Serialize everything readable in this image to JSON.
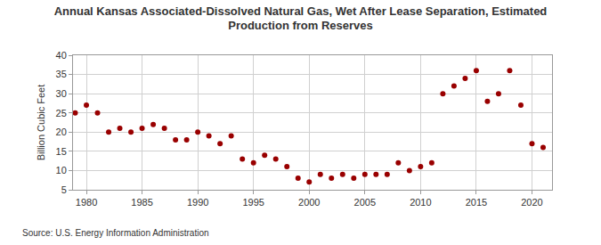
{
  "chart_data": {
    "type": "scatter",
    "title": "Annual Kansas Associated-Dissolved Natural Gas, Wet After Lease Separation, Estimated\nProduction from Reserves",
    "y_label": "Billion Cubic Feet",
    "annotations": [
      "Source: U.S. Energy Information Administration"
    ],
    "x": [
      1979,
      1980,
      1981,
      1982,
      1983,
      1984,
      1985,
      1986,
      1987,
      1988,
      1989,
      1990,
      1991,
      1992,
      1993,
      1994,
      1995,
      1996,
      1997,
      1998,
      1999,
      2000,
      2001,
      2002,
      2003,
      2004,
      2005,
      2006,
      2007,
      2008,
      2009,
      2010,
      2011,
      2012,
      2013,
      2014,
      2015,
      2016,
      2017,
      2018,
      2019,
      2020,
      2021
    ],
    "values": [
      25,
      27,
      25,
      20,
      21,
      20,
      21,
      22,
      21,
      18,
      18,
      20,
      19,
      17,
      19,
      13,
      12,
      14,
      13,
      11,
      8,
      7,
      9,
      8,
      9,
      8,
      9,
      9,
      9,
      12,
      10,
      11,
      12,
      30,
      32,
      34,
      36,
      28,
      30,
      36,
      27,
      17,
      16
    ],
    "color": "#990000",
    "marker": "circle",
    "xlim": [
      1978.8,
      2021.8
    ],
    "xticks": [
      1980,
      1985,
      1990,
      1995,
      2000,
      2005,
      2010,
      2015,
      2020
    ],
    "ylim": [
      5,
      40
    ],
    "yticks": [
      5,
      10,
      15,
      20,
      25,
      30,
      35,
      40
    ],
    "grid": true
  }
}
